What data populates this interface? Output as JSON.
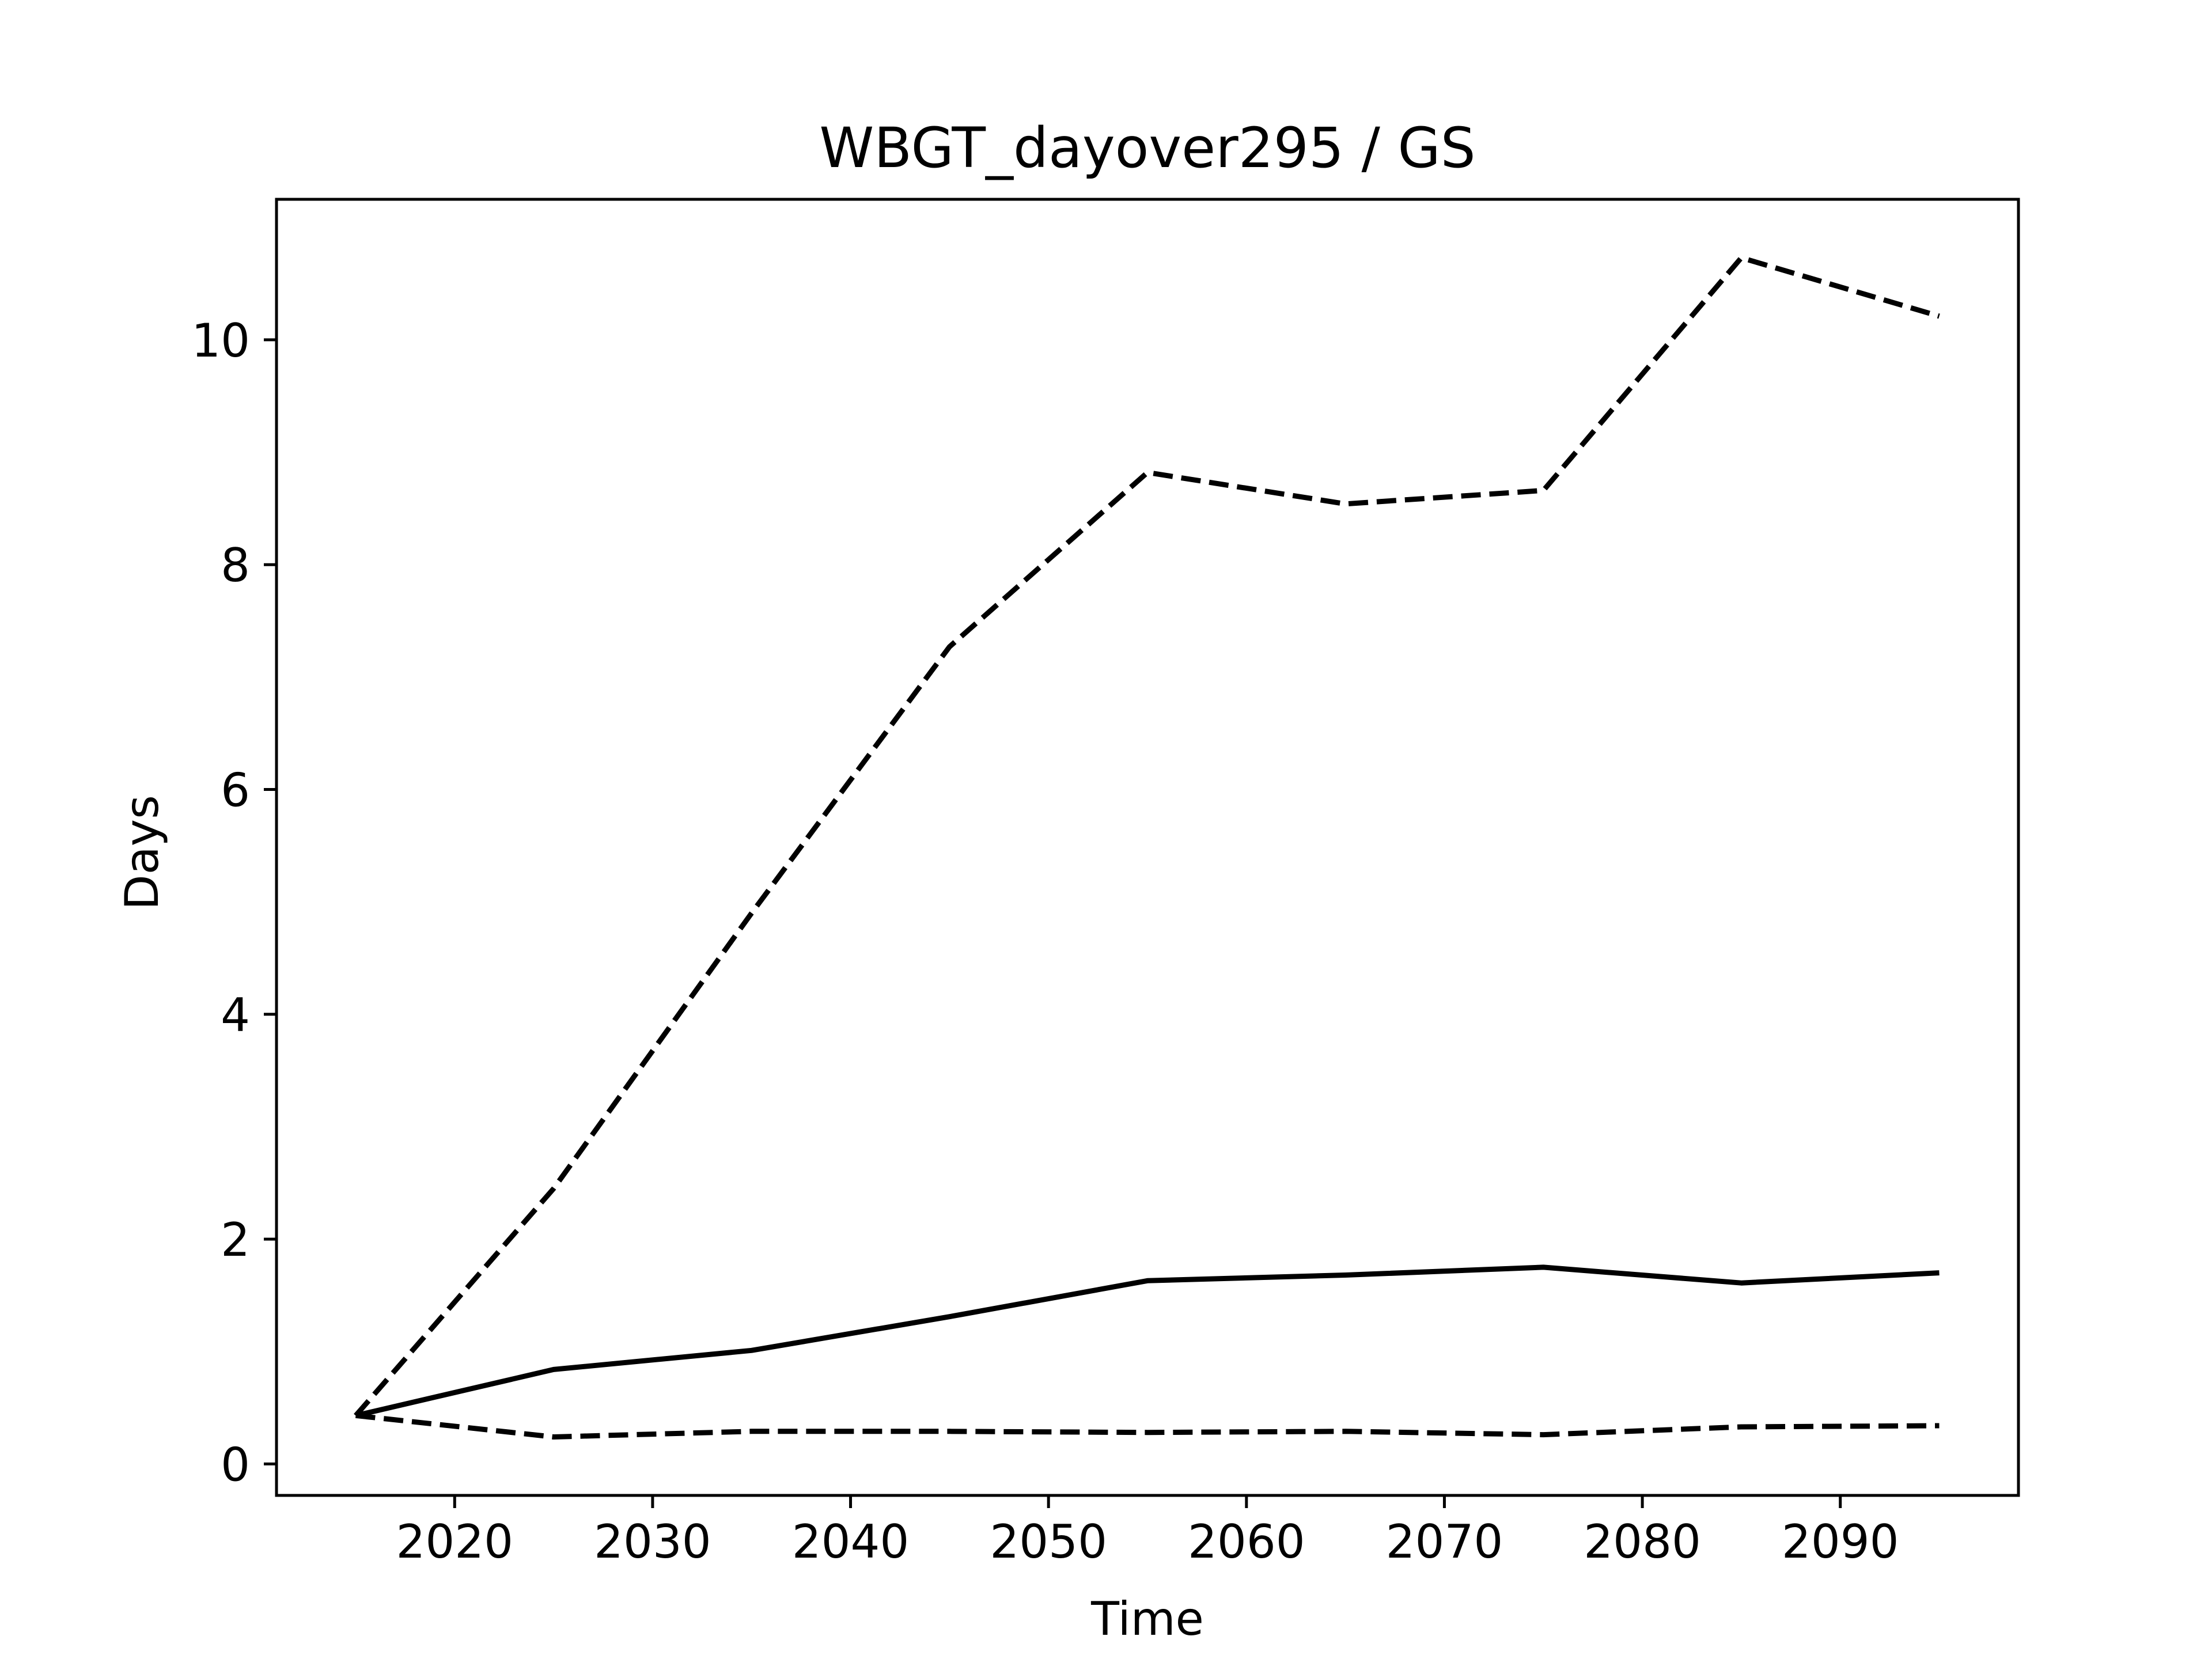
{
  "chart_data": {
    "type": "line",
    "title": "WBGT_dayover295 / GS",
    "xlabel": "Time",
    "ylabel": "Days",
    "x": [
      2015,
      2025,
      2035,
      2045,
      2055,
      2065,
      2075,
      2085,
      2095
    ],
    "xlim": [
      2011,
      2099
    ],
    "ylim": [
      -0.28,
      11.25
    ],
    "x_ticks": [
      2020,
      2030,
      2040,
      2050,
      2060,
      2070,
      2080,
      2090
    ],
    "y_ticks": [
      0,
      2,
      4,
      6,
      8,
      10
    ],
    "grid": false,
    "legend": false,
    "series": [
      {
        "style": "solid",
        "color": "#000000",
        "values": [
          0.43,
          0.84,
          1.01,
          1.31,
          1.63,
          1.68,
          1.75,
          1.61,
          1.7
        ]
      },
      {
        "style": "dashed",
        "color": "#000000",
        "values": [
          0.43,
          2.45,
          4.9,
          7.27,
          8.82,
          8.54,
          8.66,
          10.73,
          10.21
        ]
      },
      {
        "style": "dashed",
        "color": "#000000",
        "values": [
          0.43,
          0.24,
          0.29,
          0.29,
          0.28,
          0.29,
          0.26,
          0.33,
          0.34
        ]
      }
    ]
  }
}
